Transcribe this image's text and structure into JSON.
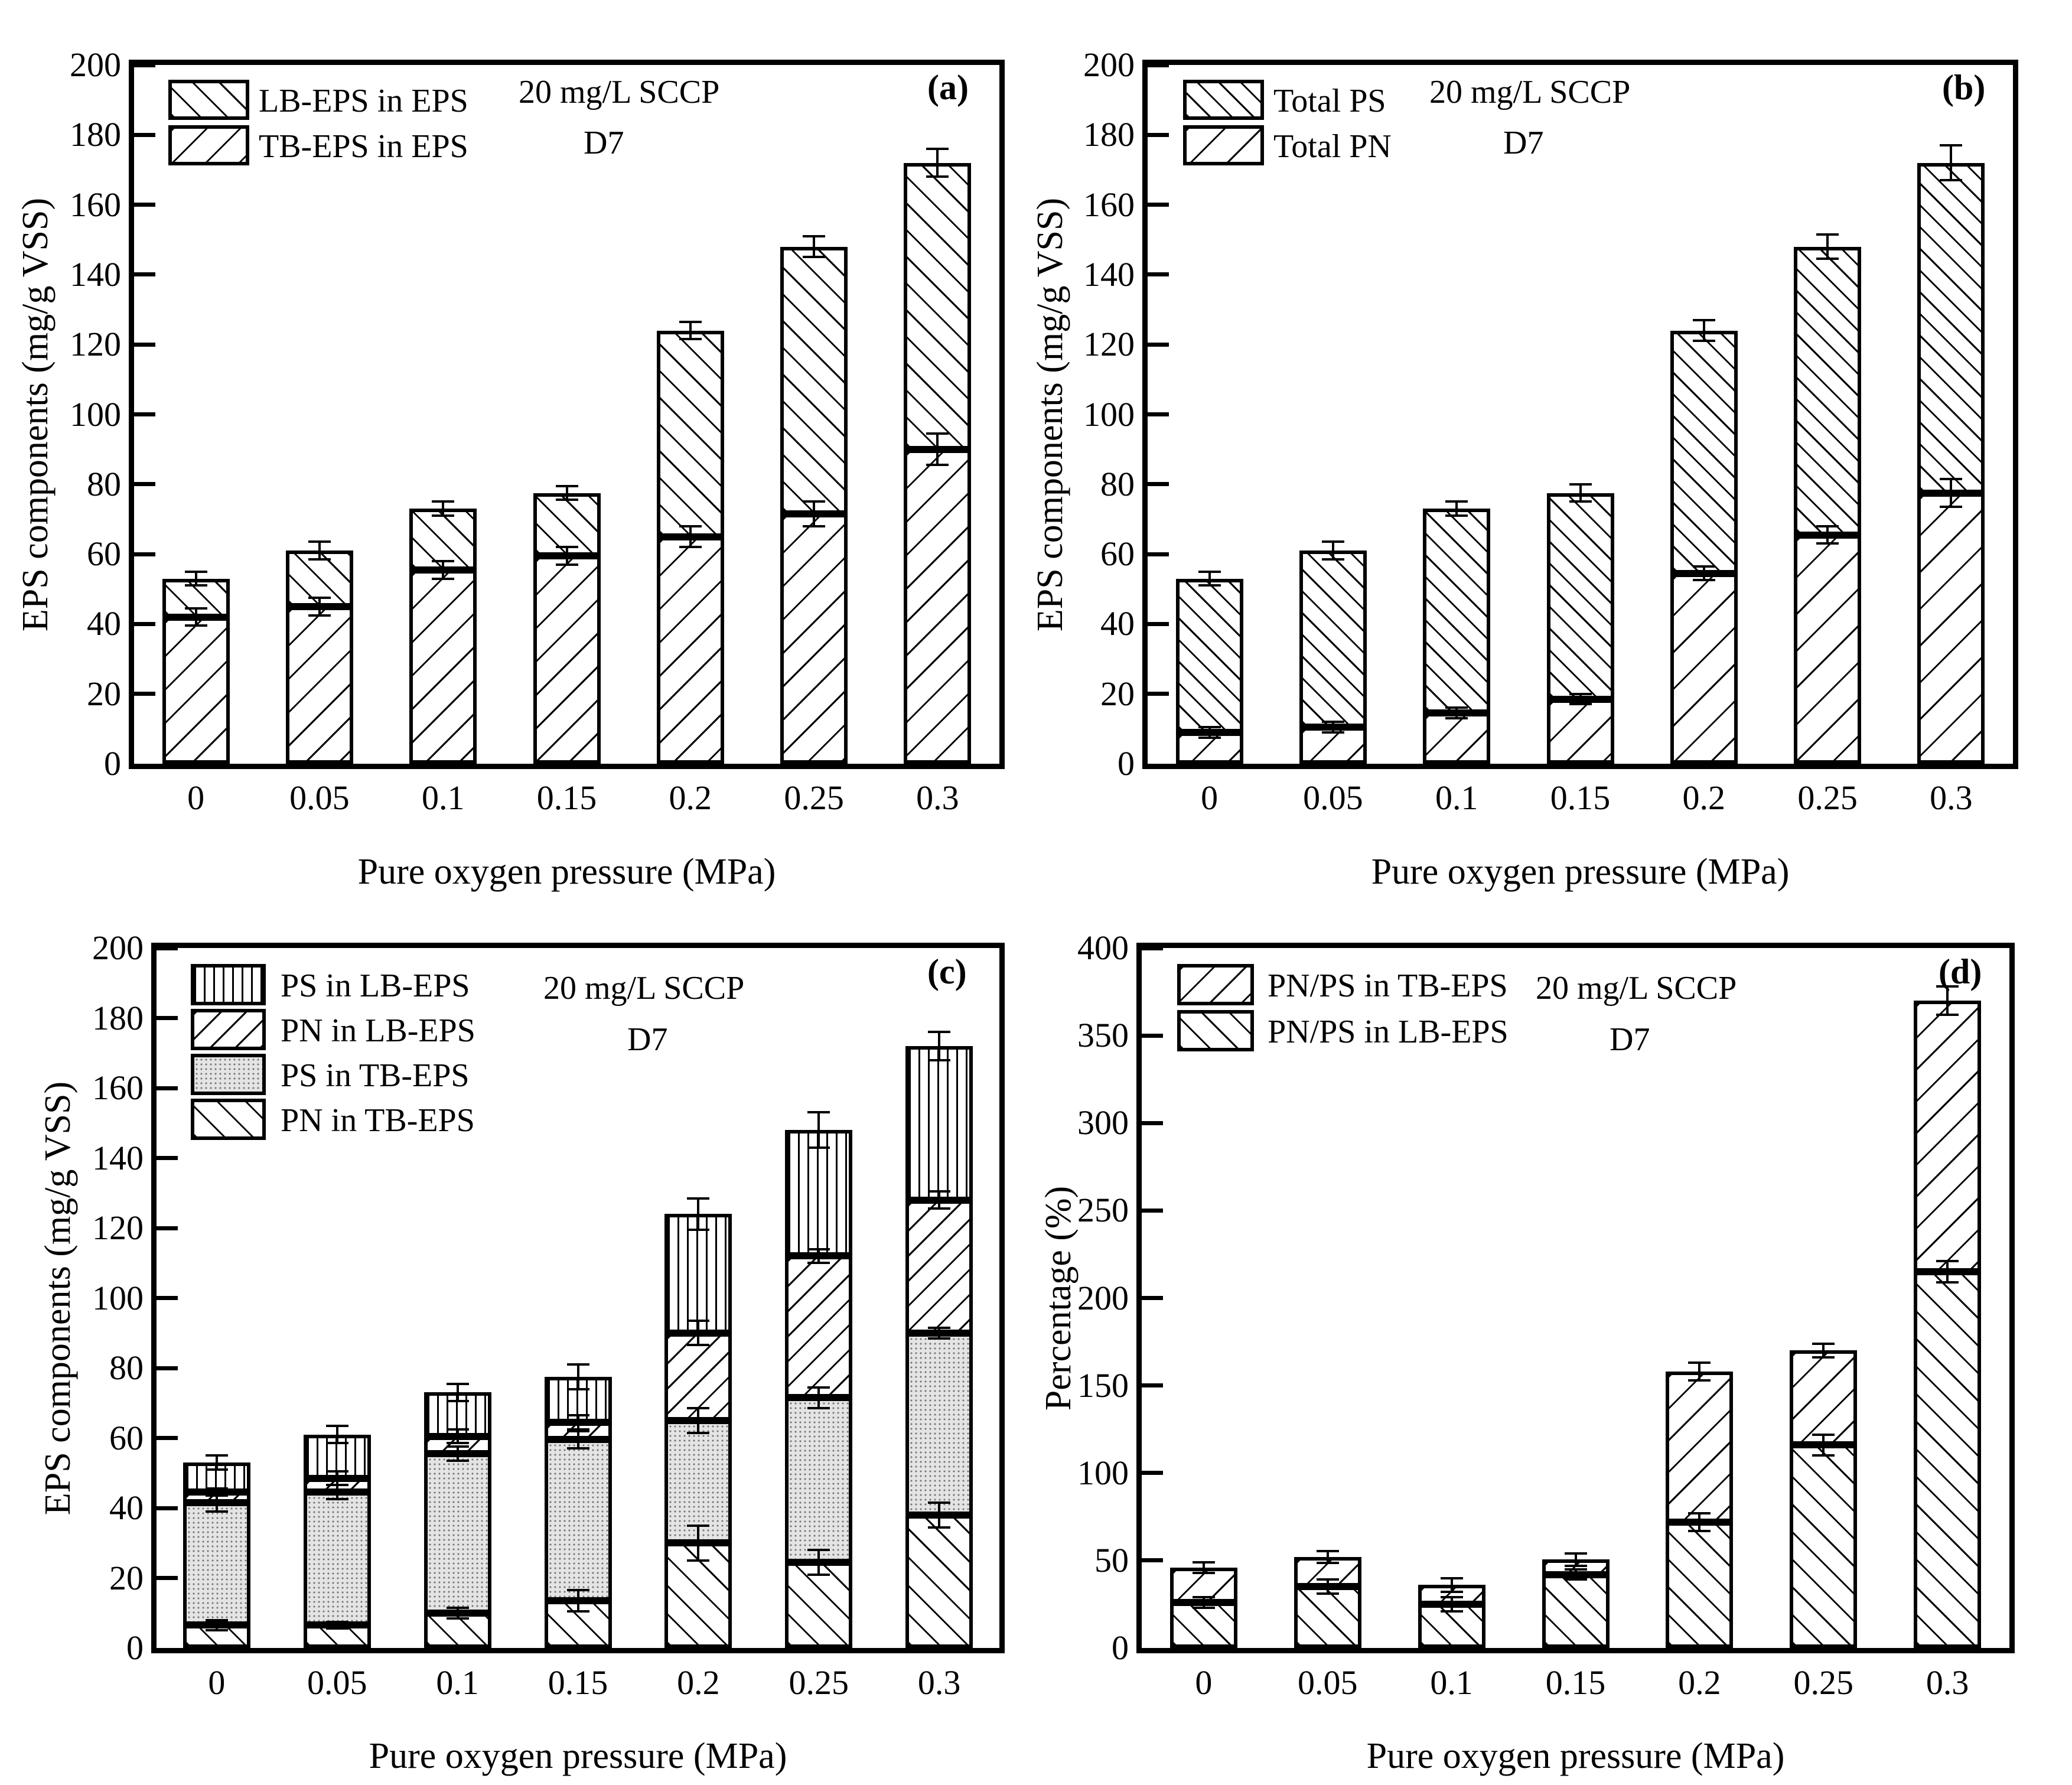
{
  "figure": {
    "background": "#ffffff",
    "ink_color": "#000000",
    "xlabel": "Pure oxygen pressure (MPa)",
    "categories": [
      "0",
      "0.05",
      "0.1",
      "0.15",
      "0.2",
      "0.25",
      "0.3"
    ]
  },
  "chart_data": [
    {
      "panel": "a",
      "type": "bar",
      "stacked": true,
      "grid": false,
      "legend_position": "upper-left",
      "panel_label": "(a)",
      "title_lines": [
        "20 mg/L SCCP",
        "D7"
      ],
      "xlabel": "Pure oxygen pressure (MPa)",
      "ylabel": "EPS components (mg/g VSS)",
      "ylim": [
        0,
        200
      ],
      "ytick_step": 20,
      "yticks": [
        "0",
        "20",
        "40",
        "60",
        "80",
        "100",
        "120",
        "140",
        "160",
        "180",
        "200"
      ],
      "categories": [
        "0",
        "0.05",
        "0.1",
        "0.15",
        "0.2",
        "0.25",
        "0.3"
      ],
      "series": [
        {
          "name": "TB-EPS in EPS",
          "pattern": "a-tb",
          "values": [
            42,
            45,
            55.5,
            59.5,
            65,
            71.5,
            90
          ],
          "errors": [
            2.5,
            2.5,
            2.5,
            2.5,
            3,
            3.5,
            4.5
          ]
        },
        {
          "name": "LB-EPS in EPS",
          "pattern": "a-lb",
          "values": [
            11,
            16,
            17.5,
            18,
            59,
            76.5,
            82
          ],
          "errors": [
            2,
            2.5,
            2,
            2,
            2.5,
            3,
            4
          ]
        }
      ],
      "legend": [
        {
          "label": "LB-EPS in EPS",
          "pattern": "a-lb"
        },
        {
          "label": "TB-EPS in EPS",
          "pattern": "a-tb"
        }
      ]
    },
    {
      "panel": "b",
      "type": "bar",
      "stacked": true,
      "grid": false,
      "legend_position": "upper-left",
      "panel_label": "(b)",
      "title_lines": [
        "20 mg/L SCCP",
        "D7"
      ],
      "xlabel": "Pure oxygen pressure (MPa)",
      "ylabel": "EPS components (mg/g VSS)",
      "ylim": [
        0,
        200
      ],
      "ytick_step": 20,
      "yticks": [
        "0",
        "20",
        "40",
        "60",
        "80",
        "100",
        "120",
        "140",
        "160",
        "180",
        "200"
      ],
      "categories": [
        "0",
        "0.05",
        "0.1",
        "0.15",
        "0.2",
        "0.25",
        "0.3"
      ],
      "series": [
        {
          "name": "Total PN",
          "pattern": "b-pn",
          "values": [
            9,
            10.5,
            14.5,
            18.5,
            54.5,
            65.5,
            77.5
          ],
          "errors": [
            1.5,
            1.5,
            1.5,
            1.5,
            2,
            2.5,
            4
          ]
        },
        {
          "name": "Total PS",
          "pattern": "b-ps",
          "values": [
            44,
            50.5,
            58.5,
            59,
            69.5,
            82.5,
            94.5
          ],
          "errors": [
            2,
            2.5,
            2,
            2.5,
            3,
            3.5,
            5
          ]
        }
      ],
      "legend": [
        {
          "label": "Total PS",
          "pattern": "b-ps"
        },
        {
          "label": "Total PN",
          "pattern": "b-pn"
        }
      ]
    },
    {
      "panel": "c",
      "type": "bar",
      "stacked": true,
      "grid": false,
      "legend_position": "upper-left",
      "panel_label": "(c)",
      "title_lines": [
        "20 mg/L SCCP",
        "D7"
      ],
      "xlabel": "Pure oxygen pressure (MPa)",
      "ylabel": "EPS components (mg/g VSS)",
      "ylim": [
        0,
        200
      ],
      "ytick_step": 20,
      "yticks": [
        "0",
        "20",
        "40",
        "60",
        "80",
        "100",
        "120",
        "140",
        "160",
        "180",
        "200"
      ],
      "categories": [
        "0",
        "0.05",
        "0.1",
        "0.15",
        "0.2",
        "0.25",
        "0.3"
      ],
      "series": [
        {
          "name": "PN in TB-EPS",
          "pattern": "c-pntb",
          "values": [
            6.5,
            6.5,
            10,
            13.5,
            30,
            24.5,
            38
          ],
          "errors": [
            1.5,
            1,
            1.5,
            3,
            5,
            3.5,
            3.5
          ]
        },
        {
          "name": "PS in TB-EPS",
          "pattern": "c-pstb",
          "values": [
            35,
            38,
            45.5,
            46,
            35,
            47,
            52
          ],
          "errors": [
            2.5,
            2,
            2,
            2.5,
            3.5,
            3,
            1.5
          ]
        },
        {
          "name": "PN in LB-EPS",
          "pattern": "c-pnlb",
          "values": [
            3,
            4,
            5,
            5,
            25,
            40.5,
            38
          ],
          "errors": [
            1,
            2,
            2,
            2,
            3.5,
            2,
            2.5
          ]
        },
        {
          "name": "PS in LB-EPS",
          "pattern": "c-pslb",
          "values": [
            8.5,
            12.5,
            12.5,
            13,
            34,
            36,
            44
          ],
          "errors": [
            2,
            2.5,
            2.5,
            3.5,
            4.5,
            5,
            4
          ]
        }
      ],
      "legend": [
        {
          "label": "PS in LB-EPS",
          "pattern": "c-pslb"
        },
        {
          "label": "PN in LB-EPS",
          "pattern": "c-pnlb"
        },
        {
          "label": "PS in TB-EPS",
          "pattern": "c-pstb"
        },
        {
          "label": "PN in TB-EPS",
          "pattern": "c-pntb"
        }
      ]
    },
    {
      "panel": "d",
      "type": "bar",
      "stacked": true,
      "grid": false,
      "legend_position": "upper-left",
      "panel_label": "(d)",
      "title_lines": [
        "20 mg/L SCCP",
        "D7"
      ],
      "xlabel": "Pure oxygen pressure (MPa)",
      "ylabel": "Percentage (%)",
      "ylim": [
        0,
        400
      ],
      "ytick_step": 50,
      "yticks": [
        "0",
        "50",
        "100",
        "150",
        "200",
        "250",
        "300",
        "350",
        "400"
      ],
      "categories": [
        "0",
        "0.05",
        "0.1",
        "0.15",
        "0.2",
        "0.25",
        "0.3"
      ],
      "series": [
        {
          "name": "PN/PS in LB-EPS",
          "pattern": "d-lb",
          "values": [
            26,
            35,
            25,
            42,
            72,
            116,
            215
          ],
          "errors": [
            3,
            4,
            4,
            3,
            5,
            6,
            6
          ]
        },
        {
          "name": "PN/PS in TB-EPS",
          "pattern": "d-tb",
          "values": [
            20,
            17,
            11,
            8.5,
            86,
            54,
            155
          ],
          "errors": [
            3,
            3.5,
            4,
            3.5,
            5,
            4,
            8
          ]
        }
      ],
      "legend": [
        {
          "label": "PN/PS in TB-EPS",
          "pattern": "d-tb"
        },
        {
          "label": "PN/PS in LB-EPS",
          "pattern": "d-lb"
        }
      ]
    }
  ]
}
